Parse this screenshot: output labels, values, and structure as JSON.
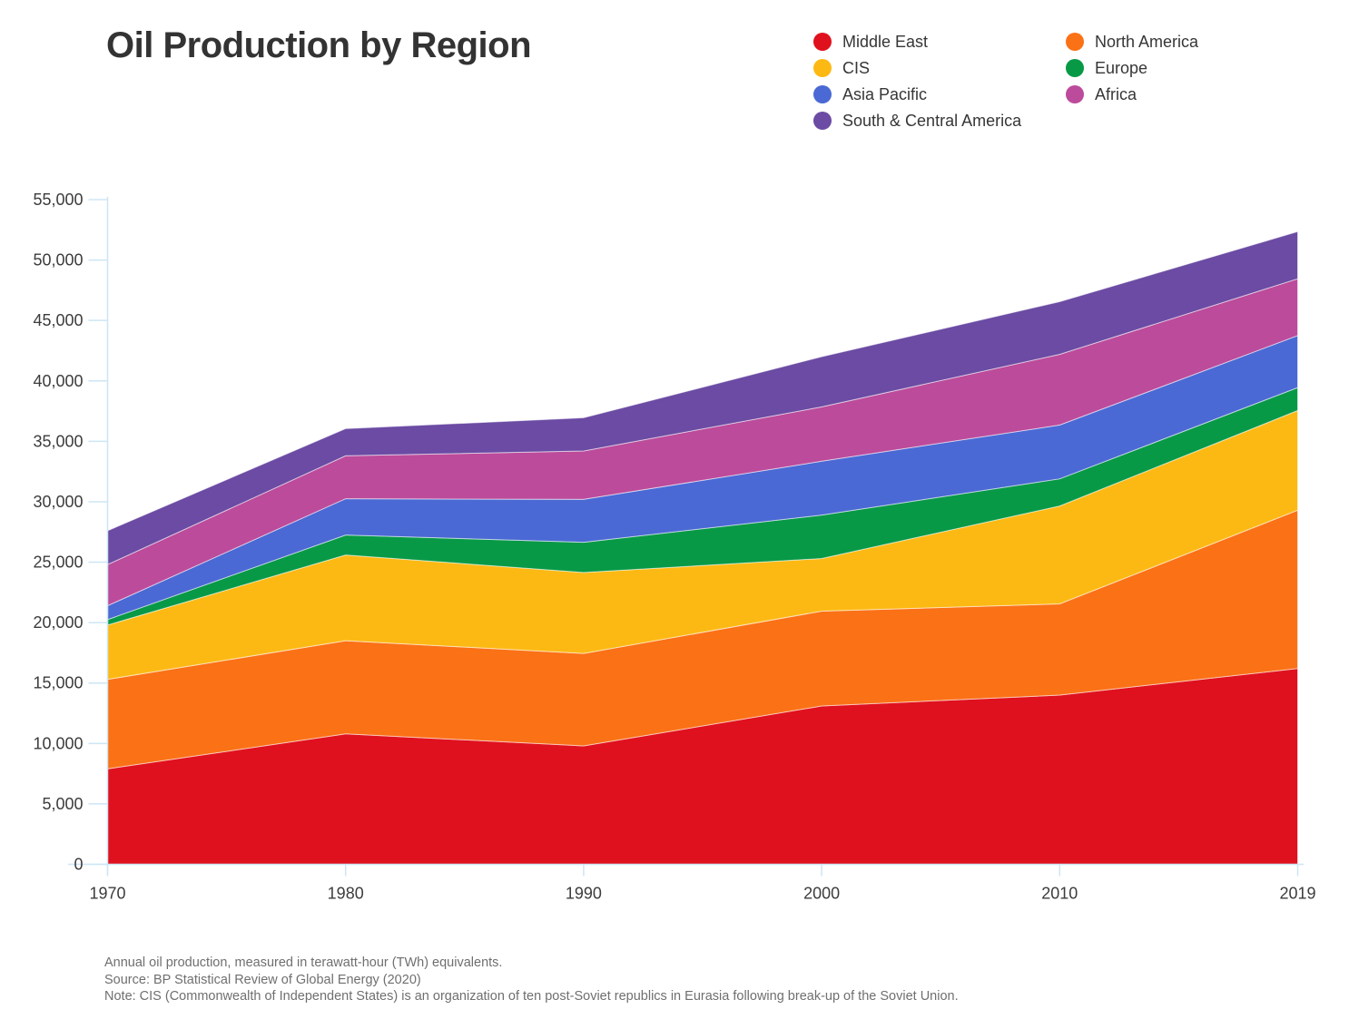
{
  "title": "Oil Production by Region",
  "legend": {
    "columns": [
      [
        {
          "label": "Middle East",
          "slug": "middle-east",
          "color": "#e0111e"
        },
        {
          "label": "CIS",
          "slug": "cis",
          "color": "#fdb913"
        },
        {
          "label": "Asia Pacific",
          "slug": "asia-pacific",
          "color": "#4a69d4"
        },
        {
          "label": "South & Central America",
          "slug": "south-central-america",
          "color": "#6b4ba3"
        }
      ],
      [
        {
          "label": "North America",
          "slug": "north-america",
          "color": "#fb7116"
        },
        {
          "label": "Europe",
          "slug": "europe",
          "color": "#089947"
        },
        {
          "label": "Africa",
          "slug": "africa",
          "color": "#bc4b9b"
        }
      ]
    ]
  },
  "chart_data": {
    "type": "area",
    "stacked": true,
    "title": "Oil Production by Region",
    "unit": "TWh",
    "grid": false,
    "legend_position": "top-right",
    "x": [
      1970,
      1980,
      1990,
      2000,
      2010,
      2019
    ],
    "x_tick_labels": [
      "1970",
      "1980",
      "1990",
      "2000",
      "2010",
      "2019"
    ],
    "ylim": [
      0,
      55000
    ],
    "y_tick_step": 5000,
    "y_ticks": [
      0,
      5000,
      10000,
      15000,
      20000,
      25000,
      30000,
      35000,
      40000,
      45000,
      50000,
      55000
    ],
    "series": [
      {
        "name": "Middle East",
        "slug": "middle-east",
        "color": "#e0111e",
        "values": [
          7900,
          10800,
          9800,
          13100,
          14000,
          16200
        ]
      },
      {
        "name": "North America",
        "slug": "north-america",
        "color": "#fb7116",
        "values": [
          7400,
          7700,
          7650,
          7850,
          7550,
          13100
        ]
      },
      {
        "name": "CIS",
        "slug": "cis",
        "color": "#fdb913",
        "values": [
          4500,
          7100,
          6700,
          4350,
          8100,
          8250
        ]
      },
      {
        "name": "Europe",
        "slug": "europe",
        "color": "#089947",
        "values": [
          450,
          1650,
          2500,
          3600,
          2250,
          1900
        ]
      },
      {
        "name": "Asia Pacific",
        "slug": "asia-pacific",
        "color": "#4a69d4",
        "values": [
          1150,
          3000,
          3550,
          4450,
          4450,
          4300
        ]
      },
      {
        "name": "Africa",
        "slug": "africa",
        "color": "#bc4b9b",
        "values": [
          3400,
          3550,
          4000,
          4500,
          5850,
          4700
        ]
      },
      {
        "name": "South & Central America",
        "slug": "south-central-america",
        "color": "#6b4ba3",
        "values": [
          2800,
          2250,
          2750,
          4150,
          4350,
          3900
        ]
      }
    ]
  },
  "axis": {
    "color": "#cde6f5",
    "label_color": "#3c3c3c"
  },
  "footnotes": [
    "Annual oil production, measured in terawatt-hour (TWh) equivalents.",
    "Source: BP Statistical Review of Global Energy (2020)",
    "Note: CIS (Commonwealth of Independent States) is an organization of ten post-Soviet republics in Eurasia following break-up of the Soviet Union."
  ]
}
